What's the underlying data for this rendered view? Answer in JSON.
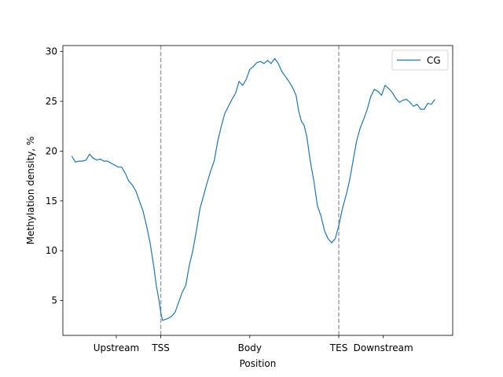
{
  "chart_data": {
    "type": "line",
    "xlabel": "Position",
    "ylabel": "Methylation density, %",
    "ylim": [
      1.5,
      30.6
    ],
    "xlim": [
      -0.1,
      4.28
    ],
    "y_ticks": [
      5,
      10,
      15,
      20,
      25,
      30
    ],
    "x_ticks": [
      {
        "label": "Upstream",
        "pos": 0.5
      },
      {
        "label": "TSS",
        "pos": 1.0
      },
      {
        "label": "Body",
        "pos": 2.0
      },
      {
        "label": "TES",
        "pos": 3.0
      },
      {
        "label": "Downstream",
        "pos": 3.5
      }
    ],
    "vlines": [
      1.0,
      3.0
    ],
    "grid": false,
    "legend_position": "top-right",
    "series": [
      {
        "name": "CG",
        "color": "#1f77b4",
        "points": [
          [
            0.0,
            19.5
          ],
          [
            0.04,
            18.9
          ],
          [
            0.08,
            19.0
          ],
          [
            0.12,
            19.0
          ],
          [
            0.16,
            19.1
          ],
          [
            0.2,
            19.7
          ],
          [
            0.24,
            19.3
          ],
          [
            0.28,
            19.1
          ],
          [
            0.32,
            19.2
          ],
          [
            0.36,
            19.0
          ],
          [
            0.4,
            19.0
          ],
          [
            0.44,
            18.8
          ],
          [
            0.48,
            18.6
          ],
          [
            0.52,
            18.4
          ],
          [
            0.56,
            18.4
          ],
          [
            0.6,
            17.8
          ],
          [
            0.64,
            17.0
          ],
          [
            0.68,
            16.6
          ],
          [
            0.72,
            16.0
          ],
          [
            0.76,
            15.0
          ],
          [
            0.8,
            14.0
          ],
          [
            0.84,
            12.5
          ],
          [
            0.88,
            10.8
          ],
          [
            0.92,
            8.5
          ],
          [
            0.95,
            6.5
          ],
          [
            0.98,
            5.0
          ],
          [
            1.0,
            3.8
          ],
          [
            1.02,
            3.0
          ],
          [
            1.05,
            3.1
          ],
          [
            1.08,
            3.2
          ],
          [
            1.12,
            3.4
          ],
          [
            1.16,
            3.8
          ],
          [
            1.2,
            4.8
          ],
          [
            1.24,
            5.8
          ],
          [
            1.28,
            6.5
          ],
          [
            1.32,
            8.5
          ],
          [
            1.36,
            10.0
          ],
          [
            1.4,
            12.0
          ],
          [
            1.44,
            14.2
          ],
          [
            1.48,
            15.5
          ],
          [
            1.52,
            16.8
          ],
          [
            1.56,
            18.0
          ],
          [
            1.6,
            19.0
          ],
          [
            1.64,
            21.0
          ],
          [
            1.68,
            22.5
          ],
          [
            1.72,
            23.8
          ],
          [
            1.76,
            24.5
          ],
          [
            1.8,
            25.2
          ],
          [
            1.84,
            25.8
          ],
          [
            1.88,
            27.0
          ],
          [
            1.92,
            26.6
          ],
          [
            1.96,
            27.2
          ],
          [
            2.0,
            28.2
          ],
          [
            2.04,
            28.5
          ],
          [
            2.08,
            28.9
          ],
          [
            2.12,
            29.0
          ],
          [
            2.16,
            28.8
          ],
          [
            2.2,
            29.1
          ],
          [
            2.24,
            28.8
          ],
          [
            2.28,
            29.3
          ],
          [
            2.32,
            28.8
          ],
          [
            2.36,
            28.0
          ],
          [
            2.4,
            27.5
          ],
          [
            2.44,
            27.0
          ],
          [
            2.48,
            26.4
          ],
          [
            2.52,
            25.6
          ],
          [
            2.55,
            24.0
          ],
          [
            2.58,
            23.0
          ],
          [
            2.61,
            22.6
          ],
          [
            2.64,
            21.5
          ],
          [
            2.68,
            19.0
          ],
          [
            2.72,
            17.0
          ],
          [
            2.76,
            14.5
          ],
          [
            2.8,
            13.5
          ],
          [
            2.84,
            12.0
          ],
          [
            2.88,
            11.2
          ],
          [
            2.92,
            10.8
          ],
          [
            2.96,
            11.2
          ],
          [
            3.0,
            12.5
          ],
          [
            3.04,
            14.2
          ],
          [
            3.08,
            15.5
          ],
          [
            3.12,
            17.0
          ],
          [
            3.16,
            19.0
          ],
          [
            3.2,
            21.0
          ],
          [
            3.24,
            22.3
          ],
          [
            3.28,
            23.2
          ],
          [
            3.32,
            24.2
          ],
          [
            3.36,
            25.5
          ],
          [
            3.4,
            26.2
          ],
          [
            3.44,
            26.0
          ],
          [
            3.48,
            25.6
          ],
          [
            3.52,
            26.6
          ],
          [
            3.56,
            26.3
          ],
          [
            3.6,
            25.9
          ],
          [
            3.64,
            25.3
          ],
          [
            3.68,
            24.9
          ],
          [
            3.72,
            25.1
          ],
          [
            3.76,
            25.2
          ],
          [
            3.8,
            24.9
          ],
          [
            3.84,
            24.5
          ],
          [
            3.88,
            24.7
          ],
          [
            3.92,
            24.2
          ],
          [
            3.96,
            24.2
          ],
          [
            4.0,
            24.8
          ],
          [
            4.04,
            24.7
          ],
          [
            4.08,
            25.2
          ]
        ]
      }
    ]
  }
}
